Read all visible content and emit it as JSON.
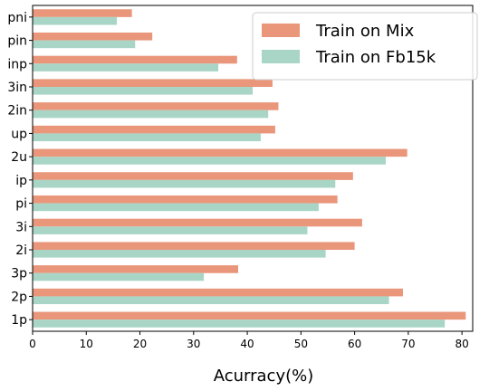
{
  "chart_data": {
    "type": "bar",
    "orientation": "horizontal",
    "categories": [
      "pni",
      "pin",
      "inp",
      "3in",
      "2in",
      "up",
      "2u",
      "ip",
      "pi",
      "3i",
      "2i",
      "3p",
      "2p",
      "1p"
    ],
    "series": [
      {
        "name": "Train on Mix",
        "color": "#e9967a",
        "values": [
          18.5,
          22.3,
          38.1,
          44.7,
          45.8,
          45.2,
          69.8,
          59.7,
          56.8,
          61.4,
          60.0,
          38.3,
          69.0,
          80.7
        ]
      },
      {
        "name": "Train on Fb15k",
        "color": "#a8d5c5",
        "values": [
          15.7,
          19.1,
          34.6,
          41.0,
          43.9,
          42.5,
          65.8,
          56.4,
          53.3,
          51.2,
          54.6,
          31.9,
          66.4,
          76.8
        ]
      }
    ],
    "title": "",
    "xlabel": "Acurracy(%)",
    "ylabel": "",
    "xlim": [
      0,
      82
    ],
    "xticks": [
      0,
      10,
      20,
      30,
      40,
      50,
      60,
      70,
      80
    ],
    "grid": false,
    "legend_position": "top-right"
  }
}
